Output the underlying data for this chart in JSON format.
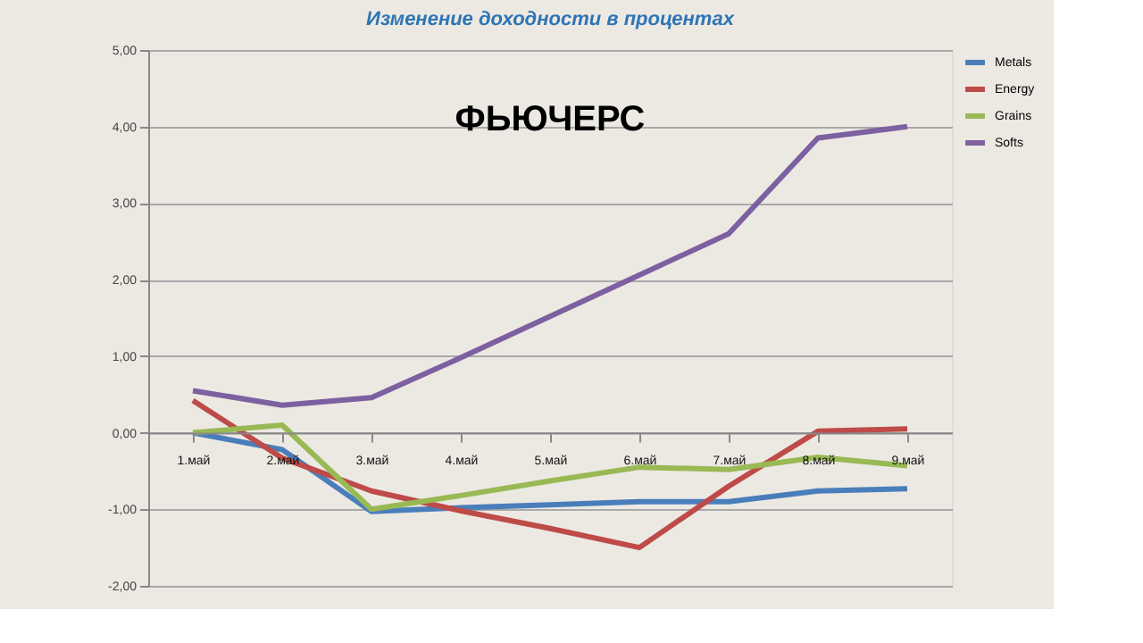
{
  "chart_data": {
    "type": "line",
    "title": "Изменение доходности в процентах",
    "annotations": [
      "ФЬЮЧЕРС"
    ],
    "categories": [
      "1.май",
      "2.май",
      "3.май",
      "4.май",
      "5.май",
      "6.май",
      "7.май",
      "8.май",
      "9.май"
    ],
    "series": [
      {
        "name": "Metals",
        "color": "#4a7ebb",
        "values": [
          0,
          -0.22,
          -1.03,
          -0.98,
          -0.94,
          -0.9,
          -0.9,
          -0.76,
          -0.73
        ]
      },
      {
        "name": "Energy",
        "color": "#be4b48",
        "values": [
          0.42,
          -0.33,
          -0.76,
          -1.02,
          -1.25,
          -1.5,
          -0.7,
          0.02,
          0.05
        ]
      },
      {
        "name": "Grains",
        "color": "#98b954",
        "values": [
          0,
          0.1,
          -1.0,
          -0.82,
          -0.63,
          -0.45,
          -0.48,
          -0.32,
          -0.43
        ]
      },
      {
        "name": "Softs",
        "color": "#7d60a0",
        "values": [
          0.55,
          0.36,
          0.46,
          0.98,
          1.52,
          2.06,
          2.6,
          3.85,
          4.0
        ]
      }
    ],
    "ylim": [
      -2,
      5
    ],
    "yticks": [
      {
        "value": -2,
        "label": "-2,00"
      },
      {
        "value": -1,
        "label": "-1,00"
      },
      {
        "value": 0,
        "label": "0,00"
      },
      {
        "value": 1,
        "label": "1,00"
      },
      {
        "value": 2,
        "label": "2,00"
      },
      {
        "value": 3,
        "label": "3,00"
      },
      {
        "value": 4,
        "label": "4,00"
      },
      {
        "value": 5,
        "label": "5,00"
      }
    ],
    "grid": "y",
    "legend": "right",
    "marker": "none",
    "line_style": "solid"
  }
}
